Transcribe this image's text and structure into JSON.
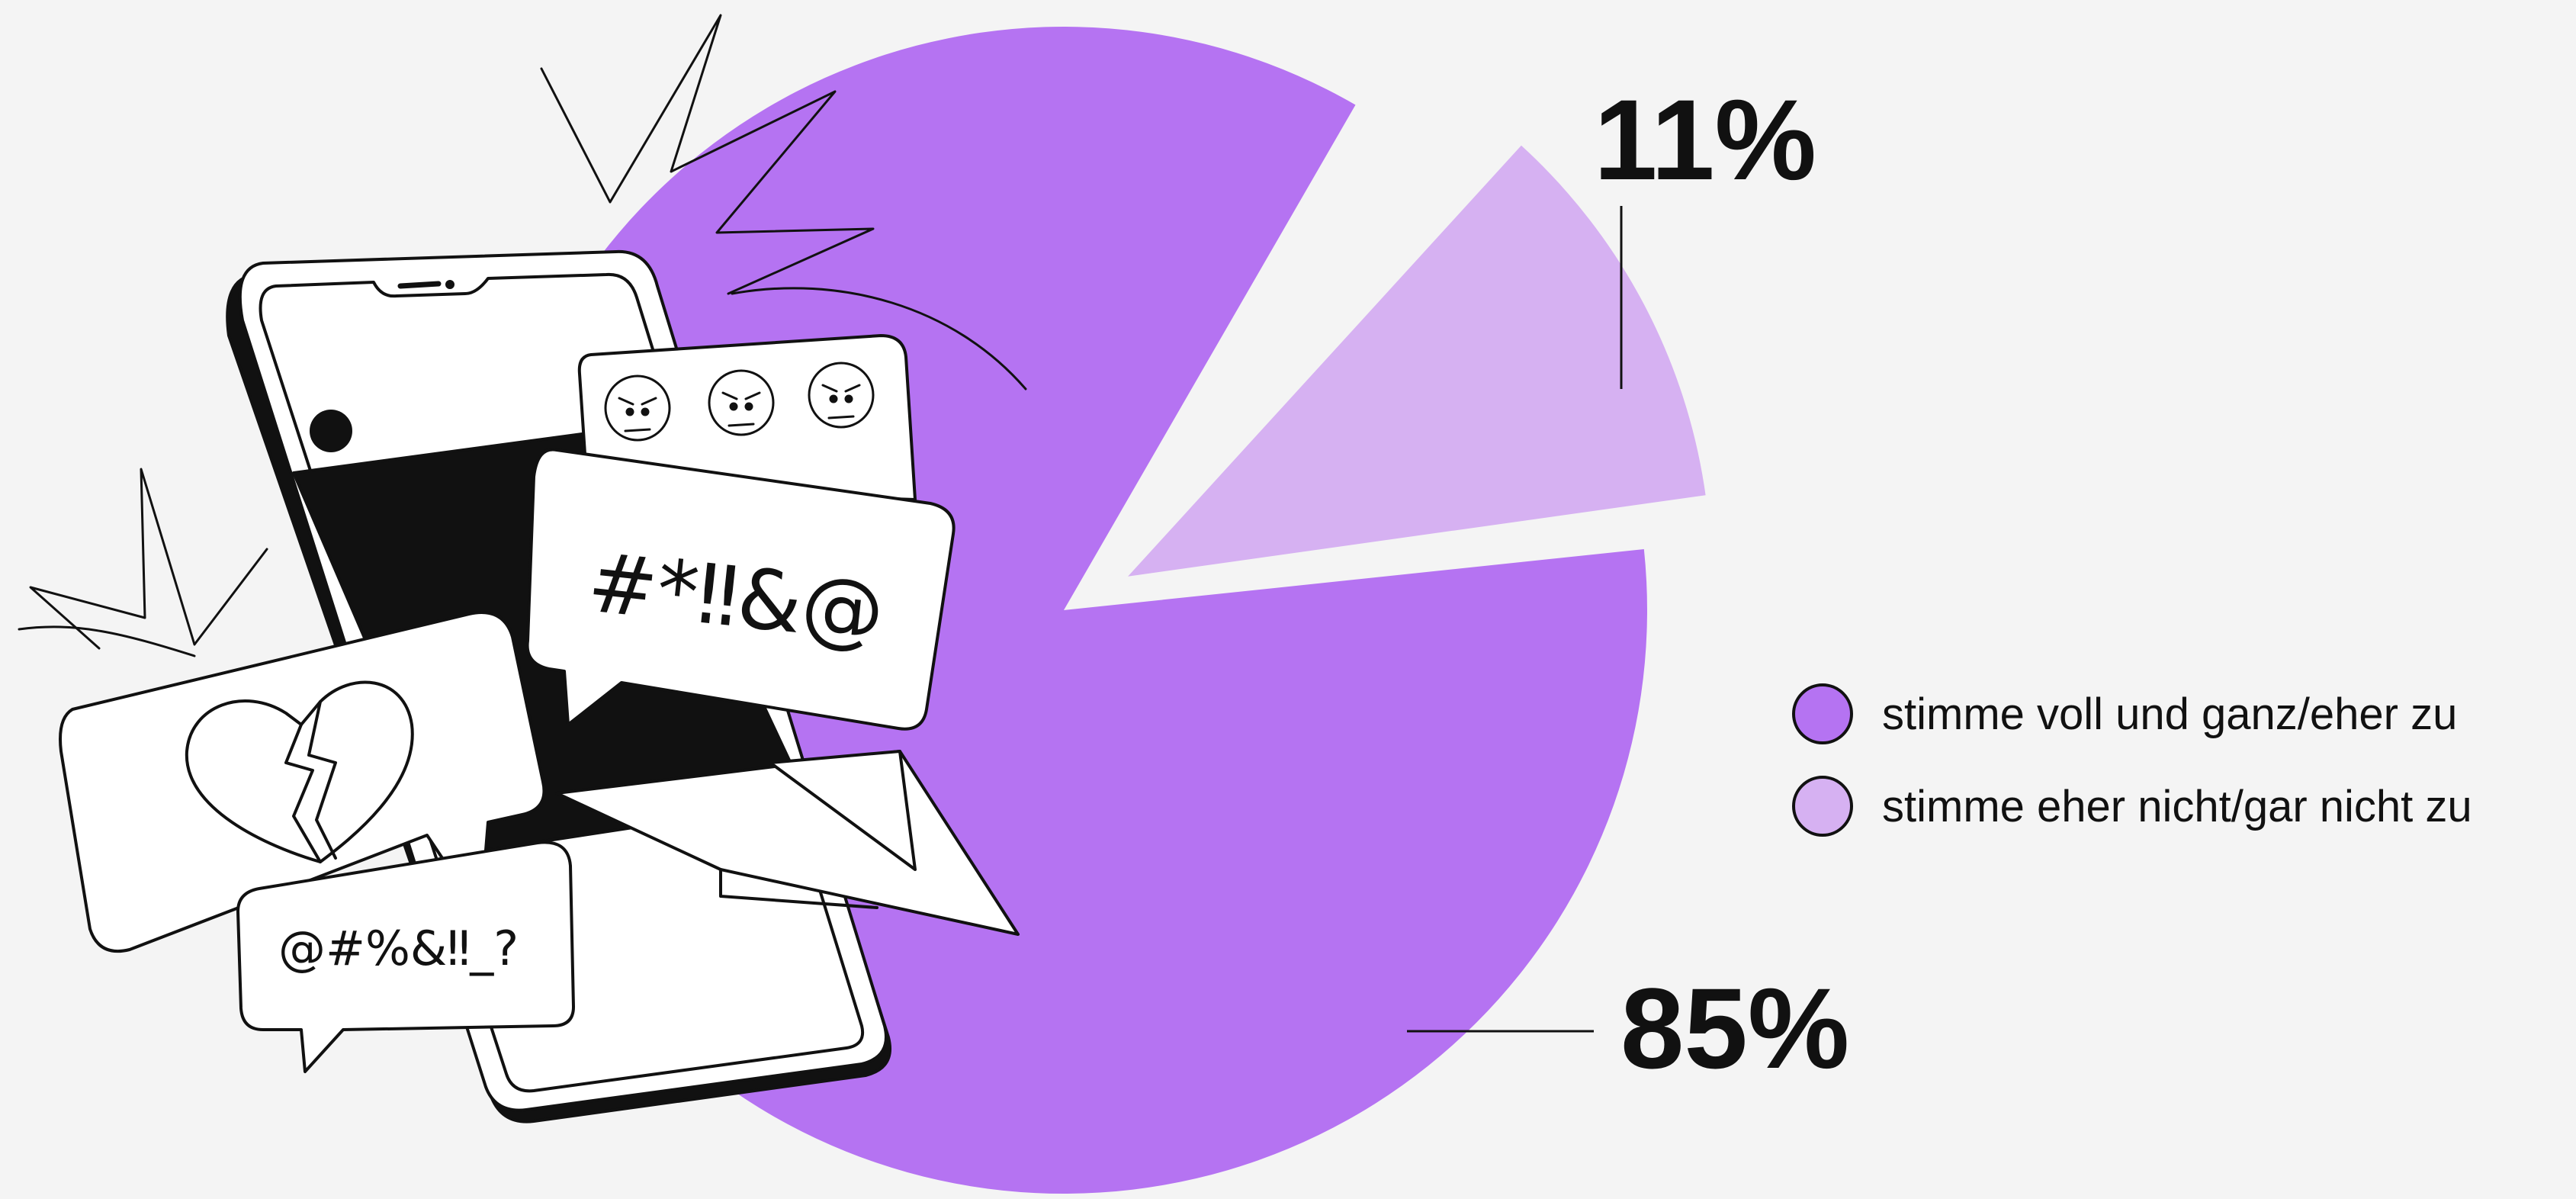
{
  "chart_data": {
    "type": "pie",
    "slices": [
      {
        "label": "stimme voll und ganz/eher zu",
        "value": 85,
        "value_label": "85%",
        "color": "#b573f2"
      },
      {
        "label": "stimme eher nicht/gar nicht zu",
        "value": 11,
        "value_label": "11%",
        "color": "#d6b1f2"
      }
    ],
    "legend_position": "right",
    "exploded_slice": "stimme eher nicht/gar nicht zu"
  },
  "illustration": {
    "icon": "smartphone-with-angry-messages-icon",
    "bubble_texts": [
      "#*‼&@",
      "@#%&‼_?"
    ],
    "emoji_icons": [
      "angry-face-icon",
      "angry-face-icon",
      "angry-face-icon"
    ],
    "heart_icon": "broken-heart-icon"
  },
  "colors": {
    "background": "#f4f4f4",
    "primary": "#b573f2",
    "secondary": "#d6b1f2",
    "ink": "#111111"
  }
}
